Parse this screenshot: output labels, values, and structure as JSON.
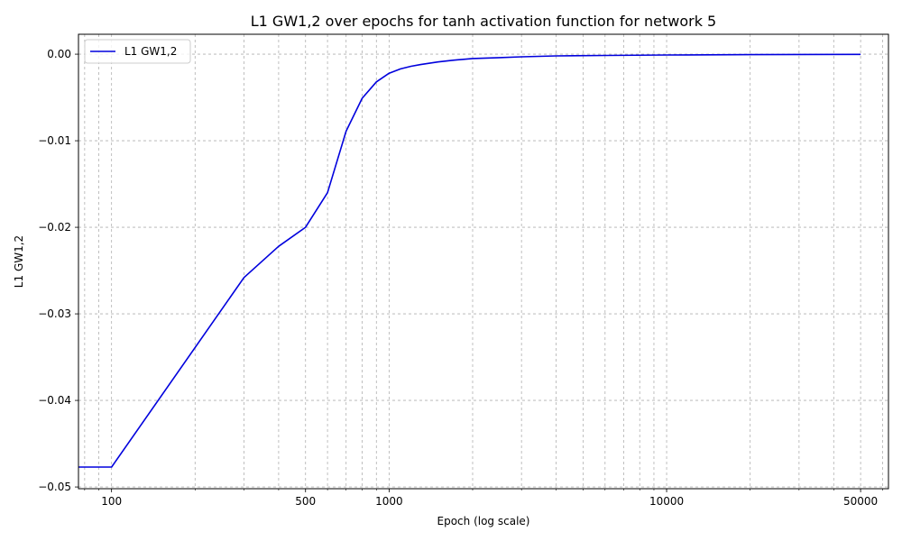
{
  "chart_data": {
    "type": "line",
    "title": "L1 GW1,2 over epochs for tanh activation function for network 5",
    "xlabel": "Epoch (log scale)",
    "ylabel": "L1 GW1,2",
    "xscale": "log",
    "xlim": [
      76,
      63000
    ],
    "ylim": [
      -0.0502,
      0.0023
    ],
    "grid": "both",
    "legend_position": "upper-left",
    "x_ticks": [
      100,
      500,
      1000,
      10000,
      50000
    ],
    "x_tick_labels": [
      "100",
      "500",
      "1000",
      "10000",
      "50000"
    ],
    "y_ticks": [
      0.0,
      -0.01,
      -0.02,
      -0.03,
      -0.04,
      -0.05
    ],
    "y_tick_labels": [
      "0.00",
      "−0.01",
      "−0.02",
      "−0.03",
      "−0.04",
      "−0.05"
    ],
    "series": [
      {
        "name": "L1 GW1,2",
        "color": "#0000dd",
        "x": [
          76,
          100,
          300,
          400,
          500,
          600,
          700,
          800,
          900,
          1000,
          1100,
          1200,
          1300,
          1500,
          1700,
          2000,
          2500,
          3000,
          4000,
          6000,
          10000,
          20000,
          50000
        ],
        "y": [
          -0.0477,
          -0.0477,
          -0.0258,
          -0.0222,
          -0.02,
          -0.016,
          -0.0089,
          -0.0051,
          -0.0032,
          -0.0022,
          -0.0017,
          -0.0014,
          -0.0012,
          -0.0009,
          -0.0007,
          -0.0005,
          -0.0004,
          -0.0003,
          -0.0002,
          -0.00015,
          -0.0001,
          -5e-05,
          -2e-05
        ]
      }
    ]
  }
}
